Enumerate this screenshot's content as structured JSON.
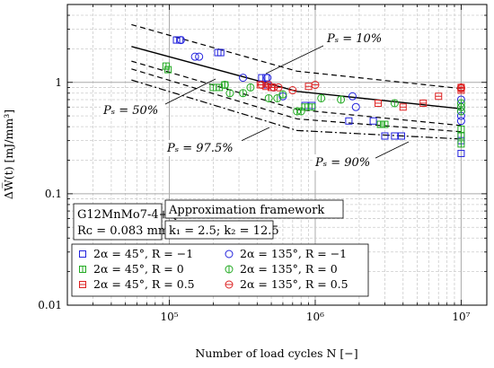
{
  "chart_data": {
    "type": "scatter",
    "xlabel": "Number of load cycles N [−]",
    "ylabel": "ΔW̅(t) [mJ/mm³]",
    "xscale": "log",
    "yscale": "log",
    "xlim": [
      20000,
      15000000
    ],
    "ylim": [
      0.01,
      5
    ],
    "grid": true,
    "x_tick_labels": [
      "10⁵",
      "10⁶",
      "10⁷"
    ],
    "y_tick_labels": [
      "0.01",
      "0.1",
      "1"
    ],
    "info_box": [
      "G12MnMo7-4+QT",
      "Rᴄ = 0.083 mm"
    ],
    "framework_box": [
      "Approximation framework",
      "k₁ = 2.5;  k₂ = 12.5"
    ],
    "legend_position": "bottom-left",
    "series": [
      {
        "name": "2α = 45°,  R = −1",
        "marker": "square",
        "color": "#2222dd",
        "x": [
          112000,
          118000,
          215000,
          225000,
          430000,
          460000,
          470000,
          850000,
          950000,
          1700000,
          2500000,
          3000000,
          3500000,
          3900000,
          10000000,
          10000000,
          10000000
        ],
        "y": [
          2.4,
          2.4,
          1.85,
          1.85,
          1.1,
          1.1,
          0.95,
          0.62,
          0.62,
          0.45,
          0.45,
          0.33,
          0.33,
          0.33,
          0.33,
          0.3,
          0.23
        ]
      },
      {
        "name": "2α = 135°,  R = −1",
        "marker": "circle",
        "color": "#2222dd",
        "x": [
          120000,
          150000,
          160000,
          320000,
          470000,
          520000,
          600000,
          1800000,
          1900000,
          10000000,
          10000000,
          10000000,
          10000000,
          10000000
        ],
        "y": [
          2.4,
          1.7,
          1.7,
          1.1,
          1.1,
          0.9,
          0.75,
          0.75,
          0.6,
          0.7,
          0.6,
          0.55,
          0.5,
          0.45
        ]
      },
      {
        "name": "2α = 45°,  R = 0",
        "marker": "square",
        "color": "#22aa22",
        "x": [
          95000,
          98000,
          200000,
          220000,
          240000,
          850000,
          950000,
          2800000,
          3000000,
          10000000,
          10000000,
          10000000
        ],
        "y": [
          1.4,
          1.3,
          0.9,
          0.9,
          0.95,
          0.6,
          0.6,
          0.42,
          0.42,
          0.38,
          0.33,
          0.28
        ]
      },
      {
        "name": "2α = 135°,  R = 0",
        "marker": "circle",
        "color": "#22aa22",
        "x": [
          240000,
          260000,
          320000,
          360000,
          480000,
          550000,
          600000,
          750000,
          800000,
          1100000,
          1500000,
          3500000,
          10000000,
          10000000,
          10000000
        ],
        "y": [
          0.95,
          0.8,
          0.8,
          0.9,
          0.72,
          0.72,
          0.78,
          0.55,
          0.55,
          0.72,
          0.7,
          0.65,
          0.65,
          0.6,
          0.55
        ]
      },
      {
        "name": "2α = 45°,  R = 0.5",
        "marker": "square",
        "color": "#dd2222",
        "x": [
          420000,
          460000,
          500000,
          900000,
          2700000,
          4000000,
          5500000,
          7000000,
          10000000,
          10000000
        ],
        "y": [
          0.95,
          0.92,
          0.9,
          0.92,
          0.65,
          0.6,
          0.65,
          0.75,
          0.9,
          0.85
        ]
      },
      {
        "name": "2α = 135°,  R = 0.5",
        "marker": "circle",
        "color": "#dd2222",
        "x": [
          430000,
          480000,
          520000,
          560000,
          700000,
          1000000,
          10000000,
          10000000
        ],
        "y": [
          0.95,
          0.95,
          0.9,
          0.9,
          0.85,
          0.95,
          0.9,
          0.88
        ]
      }
    ],
    "curves": [
      {
        "label": "",
        "style": "solid",
        "x": [
          55000,
          750000,
          10000000
        ],
        "y": [
          2.1,
          0.83,
          0.58
        ]
      },
      {
        "label": "Pₛ = 10%",
        "style": "dashed",
        "x": [
          55000,
          750000,
          10000000
        ],
        "y": [
          3.3,
          1.26,
          0.88
        ]
      },
      {
        "label": "Pₛ = 50%",
        "style": "dashed",
        "x": [
          55000,
          750000,
          10000000
        ],
        "y": [
          1.55,
          0.57,
          0.41
        ]
      },
      {
        "label": "Pₛ = 90%",
        "style": "dashed",
        "x": [
          55000,
          750000,
          10000000
        ],
        "y": [
          1.32,
          0.47,
          0.36
        ]
      },
      {
        "label": "Pₛ = 97.5%",
        "style": "dashdot",
        "x": [
          55000,
          750000,
          10000000
        ],
        "y": [
          1.05,
          0.37,
          0.31
        ]
      }
    ]
  }
}
